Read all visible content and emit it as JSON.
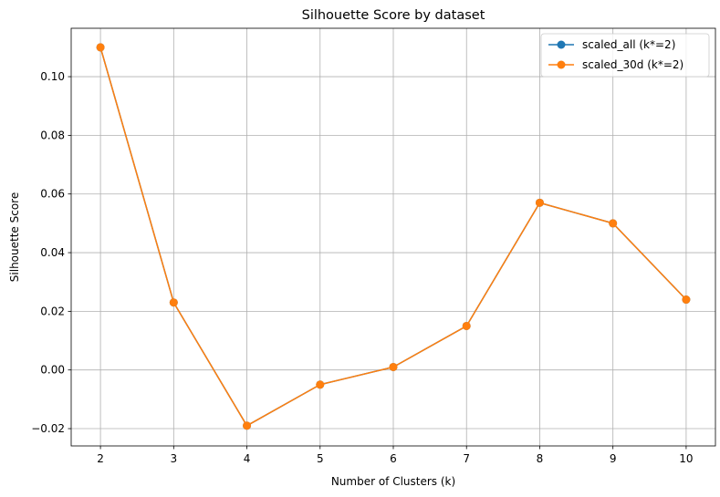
{
  "chart_data": {
    "type": "line",
    "title": "Silhouette Score by dataset",
    "xlabel": "Number of Clusters (k)",
    "ylabel": "Silhouette Score",
    "x": [
      2,
      3,
      4,
      5,
      6,
      7,
      8,
      9,
      10
    ],
    "xlim": [
      1.6,
      10.4
    ],
    "ylim": [
      -0.0259,
      0.1165
    ],
    "xticks": [
      "2",
      "3",
      "4",
      "5",
      "6",
      "7",
      "8",
      "9",
      "10"
    ],
    "yticks": [
      -0.02,
      0.0,
      0.02,
      0.04,
      0.06,
      0.08,
      0.1
    ],
    "ytick_labels": [
      "−0.02",
      "0.00",
      "0.02",
      "0.04",
      "0.06",
      "0.08",
      "0.10"
    ],
    "grid": true,
    "legend_position": "top-right",
    "series": [
      {
        "name": "scaled_all (k*=2)",
        "color": "#1f77b4",
        "marker": "circle",
        "values": [
          0.11,
          0.023,
          -0.019,
          -0.005,
          0.001,
          0.015,
          0.057,
          0.05,
          0.024
        ]
      },
      {
        "name": "scaled_30d (k*=2)",
        "color": "#ff7f0e",
        "marker": "circle",
        "values": [
          0.11,
          0.023,
          -0.019,
          -0.005,
          0.001,
          0.015,
          0.057,
          0.05,
          0.024
        ]
      }
    ]
  }
}
